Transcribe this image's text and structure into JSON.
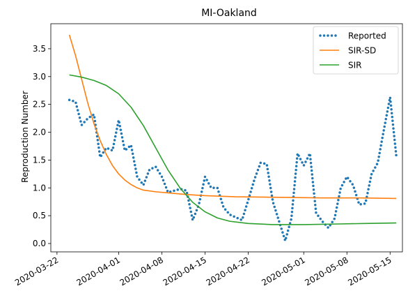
{
  "chart_data": {
    "type": "line",
    "title": "MI-Oakland",
    "xlabel": "",
    "ylabel": "Reproduction Number",
    "x_range": [
      "2020-03-21",
      "2020-05-17"
    ],
    "ylim": [
      -0.15,
      3.95
    ],
    "x_ticks": [
      "2020-03-22",
      "2020-04-01",
      "2020-04-08",
      "2020-04-15",
      "2020-04-22",
      "2020-05-01",
      "2020-05-08",
      "2020-05-15"
    ],
    "y_ticks": [
      "0.0",
      "0.5",
      "1.0",
      "1.5",
      "2.0",
      "2.5",
      "3.0",
      "3.5"
    ],
    "grid": false,
    "legend_position": "top-right",
    "series": [
      {
        "name": "Reported",
        "style": "dotted",
        "color": "#1f77b4",
        "points": [
          [
            "2020-03-24",
            2.58
          ],
          [
            "2020-03-25",
            2.55
          ],
          [
            "2020-03-26",
            2.13
          ],
          [
            "2020-03-27",
            2.25
          ],
          [
            "2020-03-28",
            2.32
          ],
          [
            "2020-03-29",
            1.55
          ],
          [
            "2020-03-30",
            1.72
          ],
          [
            "2020-03-31",
            1.67
          ],
          [
            "2020-04-01",
            2.22
          ],
          [
            "2020-04-02",
            1.67
          ],
          [
            "2020-04-03",
            1.77
          ],
          [
            "2020-04-04",
            1.2
          ],
          [
            "2020-04-05",
            1.05
          ],
          [
            "2020-04-06",
            1.33
          ],
          [
            "2020-04-07",
            1.38
          ],
          [
            "2020-04-08",
            1.2
          ],
          [
            "2020-04-09",
            0.92
          ],
          [
            "2020-04-10",
            0.95
          ],
          [
            "2020-04-11",
            0.98
          ],
          [
            "2020-04-12",
            0.95
          ],
          [
            "2020-04-13",
            0.42
          ],
          [
            "2020-04-14",
            0.7
          ],
          [
            "2020-04-15",
            1.2
          ],
          [
            "2020-04-16",
            1.0
          ],
          [
            "2020-04-17",
            1.0
          ],
          [
            "2020-04-18",
            0.65
          ],
          [
            "2020-04-19",
            0.52
          ],
          [
            "2020-04-20",
            0.47
          ],
          [
            "2020-04-21",
            0.42
          ],
          [
            "2020-04-22",
            0.78
          ],
          [
            "2020-04-23",
            1.15
          ],
          [
            "2020-04-24",
            1.45
          ],
          [
            "2020-04-25",
            1.43
          ],
          [
            "2020-04-26",
            0.75
          ],
          [
            "2020-04-27",
            0.4
          ],
          [
            "2020-04-28",
            0.05
          ],
          [
            "2020-04-29",
            0.45
          ],
          [
            "2020-04-30",
            1.62
          ],
          [
            "2020-05-01",
            1.4
          ],
          [
            "2020-05-02",
            1.62
          ],
          [
            "2020-05-03",
            0.55
          ],
          [
            "2020-05-04",
            0.4
          ],
          [
            "2020-05-05",
            0.28
          ],
          [
            "2020-05-06",
            0.45
          ],
          [
            "2020-05-07",
            1.0
          ],
          [
            "2020-05-08",
            1.2
          ],
          [
            "2020-05-09",
            1.05
          ],
          [
            "2020-05-10",
            0.7
          ],
          [
            "2020-05-11",
            0.72
          ],
          [
            "2020-05-12",
            1.25
          ],
          [
            "2020-05-13",
            1.45
          ],
          [
            "2020-05-14",
            2.05
          ],
          [
            "2020-05-15",
            2.63
          ],
          [
            "2020-05-16",
            1.58
          ]
        ]
      },
      {
        "name": "SIR-SD",
        "style": "solid",
        "color": "#ff7f0e",
        "points": [
          [
            "2020-03-24",
            3.75
          ],
          [
            "2020-03-25",
            3.38
          ],
          [
            "2020-03-26",
            2.95
          ],
          [
            "2020-03-27",
            2.52
          ],
          [
            "2020-03-28",
            2.15
          ],
          [
            "2020-03-29",
            1.85
          ],
          [
            "2020-03-30",
            1.6
          ],
          [
            "2020-03-31",
            1.4
          ],
          [
            "2020-04-01",
            1.25
          ],
          [
            "2020-04-02",
            1.14
          ],
          [
            "2020-04-03",
            1.06
          ],
          [
            "2020-04-04",
            1.0
          ],
          [
            "2020-04-05",
            0.96
          ],
          [
            "2020-04-07",
            0.93
          ],
          [
            "2020-04-09",
            0.91
          ],
          [
            "2020-04-12",
            0.88
          ],
          [
            "2020-04-15",
            0.86
          ],
          [
            "2020-04-20",
            0.84
          ],
          [
            "2020-04-27",
            0.83
          ],
          [
            "2020-05-04",
            0.82
          ],
          [
            "2020-05-10",
            0.82
          ],
          [
            "2020-05-16",
            0.81
          ]
        ]
      },
      {
        "name": "SIR",
        "style": "solid",
        "color": "#2ca02c",
        "points": [
          [
            "2020-03-24",
            3.03
          ],
          [
            "2020-03-26",
            2.99
          ],
          [
            "2020-03-28",
            2.93
          ],
          [
            "2020-03-30",
            2.84
          ],
          [
            "2020-04-01",
            2.69
          ],
          [
            "2020-04-03",
            2.45
          ],
          [
            "2020-04-05",
            2.12
          ],
          [
            "2020-04-07",
            1.72
          ],
          [
            "2020-04-09",
            1.32
          ],
          [
            "2020-04-11",
            0.99
          ],
          [
            "2020-04-13",
            0.74
          ],
          [
            "2020-04-15",
            0.57
          ],
          [
            "2020-04-17",
            0.46
          ],
          [
            "2020-04-19",
            0.4
          ],
          [
            "2020-04-22",
            0.36
          ],
          [
            "2020-04-26",
            0.34
          ],
          [
            "2020-05-01",
            0.34
          ],
          [
            "2020-05-06",
            0.35
          ],
          [
            "2020-05-11",
            0.36
          ],
          [
            "2020-05-16",
            0.37
          ]
        ]
      }
    ]
  }
}
